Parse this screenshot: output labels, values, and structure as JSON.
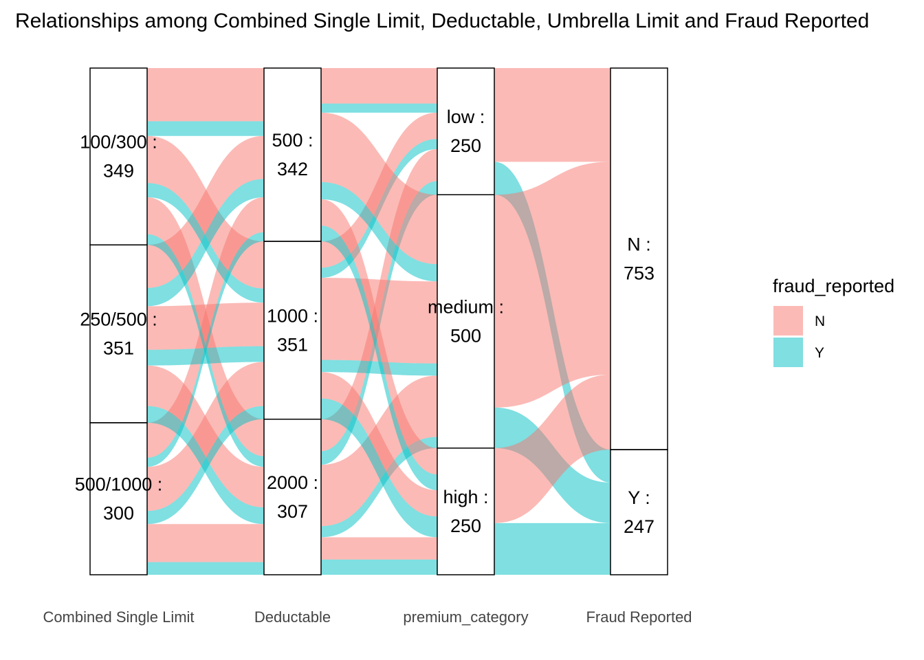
{
  "chart_data": {
    "type": "alluvial",
    "title": "Relationships among Combined Single Limit, Deductable, Umbrella Limit and Fraud Reported",
    "axes": [
      {
        "name": "Combined Single Limit",
        "strata": [
          {
            "label": "100/300",
            "count": 349
          },
          {
            "label": "250/500",
            "count": 351
          },
          {
            "label": "500/1000",
            "count": 300
          }
        ]
      },
      {
        "name": "Deductable",
        "strata": [
          {
            "label": "500",
            "count": 342
          },
          {
            "label": "1000",
            "count": 351
          },
          {
            "label": "2000",
            "count": 307
          }
        ]
      },
      {
        "name": "premium_category",
        "strata": [
          {
            "label": "low",
            "count": 250
          },
          {
            "label": "medium",
            "count": 500
          },
          {
            "label": "high",
            "count": 250
          }
        ]
      },
      {
        "name": "Fraud Reported",
        "strata": [
          {
            "label": "N",
            "count": 753
          },
          {
            "label": "Y",
            "count": 247
          }
        ]
      }
    ],
    "legend": {
      "title": "fraud_reported",
      "position": "right",
      "entries": [
        {
          "key": "N",
          "color": "#F8766D"
        },
        {
          "key": "Y",
          "color": "#00BFC4"
        }
      ]
    },
    "flows_premium_to_fraud": [
      {
        "from": "low",
        "to": "N",
        "count": 185
      },
      {
        "from": "low",
        "to": "Y",
        "count": 65
      },
      {
        "from": "medium",
        "to": "N",
        "count": 420
      },
      {
        "from": "medium",
        "to": "Y",
        "count": 80
      },
      {
        "from": "high",
        "to": "N",
        "count": 148
      },
      {
        "from": "high",
        "to": "Y",
        "count": 102
      }
    ],
    "total": 1000,
    "alpha": 0.5,
    "grid": false
  }
}
